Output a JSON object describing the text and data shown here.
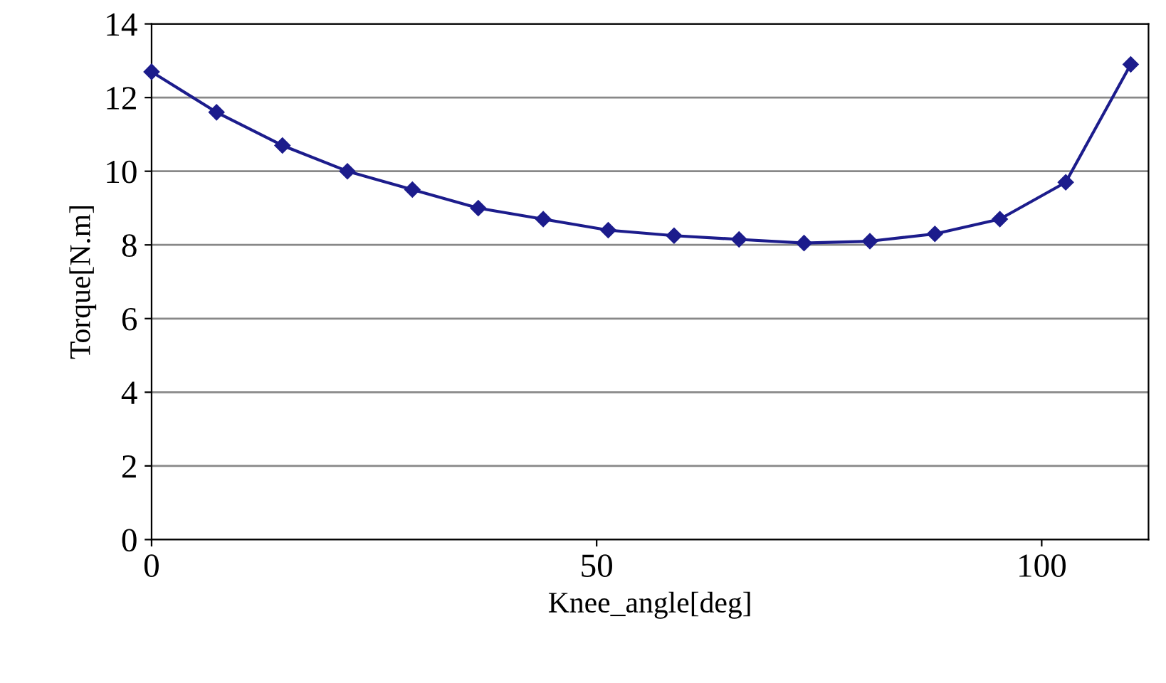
{
  "chart_data": {
    "type": "line",
    "xlabel": "Knee_angle[deg]",
    "ylabel": "Torque[N.m]",
    "x": [
      0,
      7.3,
      14.7,
      22,
      29.3,
      36.7,
      44,
      51.3,
      58.7,
      66,
      73.3,
      80.7,
      88,
      95.3,
      102.7,
      110
    ],
    "series": [
      {
        "color": "#1c1c8c",
        "values": [
          12.7,
          11.6,
          10.7,
          10.0,
          9.5,
          9.0,
          8.7,
          8.4,
          8.25,
          8.15,
          8.05,
          8.1,
          8.3,
          8.7,
          9.7,
          12.9
        ]
      }
    ],
    "xlim": [
      0,
      112
    ],
    "xticks": [
      0,
      50,
      100
    ],
    "ylim": [
      0,
      14
    ],
    "yticks": [
      0,
      2,
      4,
      6,
      8,
      10,
      12,
      14
    ],
    "grid": "y",
    "marker": "diamond",
    "line_style": "solid",
    "legend": false
  }
}
